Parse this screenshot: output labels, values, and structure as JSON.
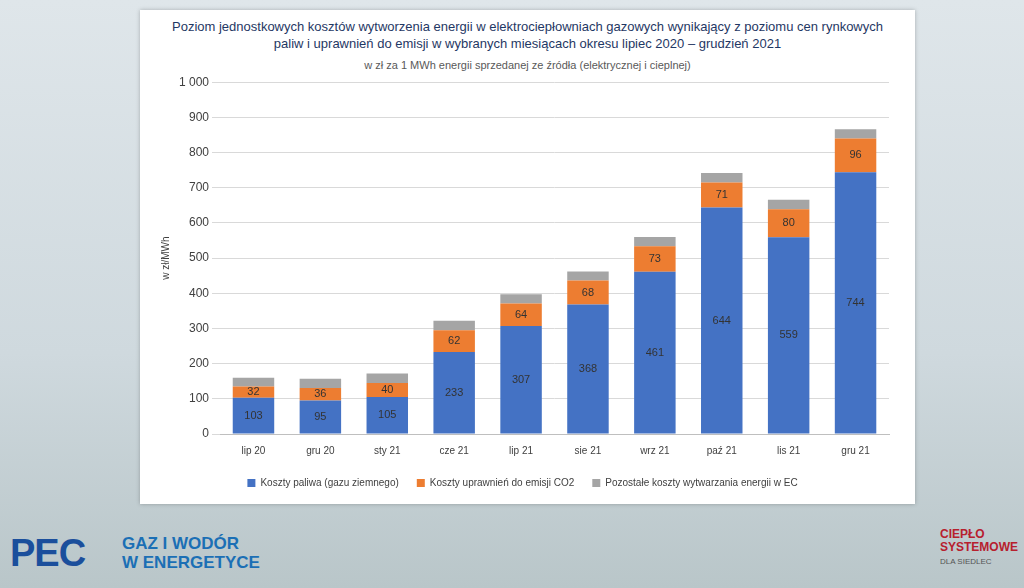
{
  "chart_data": {
    "type": "bar",
    "title": "Poziom jednostkowych kosztów wytworzenia energii w elektrociepłowniach gazowych wynikający z poziomu cen rynkowych paliw i uprawnień do emisji w wybranych miesiącach okresu lipiec 2020 – grudzień 2021",
    "subtitle": "w zł za 1 MWh energii sprzedanej ze źródła (elektrycznej i cieplnej)",
    "y_label": "w zł/MWh",
    "categories": [
      "lip 20",
      "gru 20",
      "sty 21",
      "cze 21",
      "lip 21",
      "sie 21",
      "wrz 21",
      "paź 21",
      "lis 21",
      "gru 21"
    ],
    "series": [
      {
        "name": "Koszty paliwa (gazu ziemnego)",
        "color": "#4472c4",
        "data_labels": true,
        "values": [
          103,
          95,
          105,
          233,
          307,
          368,
          461,
          644,
          559,
          744
        ]
      },
      {
        "name": "Koszty uprawnień do emisji CO2",
        "color": "#ed7d31",
        "data_labels": true,
        "values": [
          32,
          36,
          40,
          62,
          64,
          68,
          73,
          71,
          80,
          96
        ]
      },
      {
        "name": "Pozostałe koszty wytwarzania energii w EC",
        "color": "#a5a5a5",
        "data_labels": false,
        "values": [
          25,
          26,
          27,
          27,
          26,
          26,
          26,
          27,
          27,
          26
        ]
      }
    ],
    "stacked": true,
    "ylim": [
      0,
      1000
    ],
    "yticks": [
      0,
      100,
      200,
      300,
      400,
      500,
      600,
      700,
      800,
      900,
      {
        "value": 1000,
        "label": "1 000"
      }
    ],
    "grid": true,
    "legend": "bottom"
  },
  "footer": {
    "logo_left": "PEC",
    "banner": [
      "GAZ I WODÓR",
      "W ENERGETYCE"
    ],
    "logo_right": [
      "CIEPŁO",
      "SYSTEMOWE",
      "DLA SIEDLEC"
    ]
  }
}
